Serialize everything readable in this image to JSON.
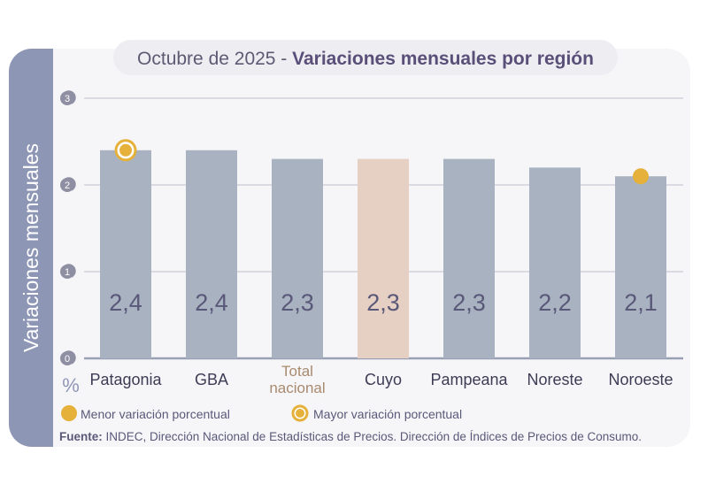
{
  "title_prefix": "Octubre de 2025 - ",
  "title_main": "Variaciones mensuales por región",
  "colors": {
    "bar": "#a8b2c1",
    "highlight_bar": "#e6cfc3",
    "band": "#8e96b6",
    "marker": "#e5b13a",
    "value_text": "#5a5878",
    "highlight_label": "#a88a6e"
  },
  "chart_data": {
    "type": "bar",
    "ylabel": "Variaciones mensuales",
    "yunit": "%",
    "ylim": [
      0,
      3
    ],
    "yticks": [
      "0",
      "1",
      "2",
      "3"
    ],
    "grid": true,
    "categories": [
      "Patagonia",
      "GBA",
      "Total nacional",
      "Cuyo",
      "Pampeana",
      "Noreste",
      "Noroeste"
    ],
    "category_lines": [
      [
        "Patagonia"
      ],
      [
        "GBA"
      ],
      [
        "Total",
        "nacional"
      ],
      [
        "Cuyo"
      ],
      [
        "Pampeana"
      ],
      [
        "Noreste"
      ],
      [
        "Noroeste"
      ]
    ],
    "values": [
      2.4,
      2.4,
      2.3,
      2.3,
      2.3,
      2.2,
      2.1
    ],
    "value_labels": [
      "2,4",
      "2,4",
      "2,3",
      "2,3",
      "2,3",
      "2,2",
      "2,1"
    ],
    "highlight_category": "Total nacional",
    "highlight_bar": "Cuyo",
    "max_marker": "Patagonia",
    "min_marker": "Noroeste",
    "legend": {
      "placement": "bottom-left",
      "min_label": "Menor variación porcentual",
      "max_label": "Mayor variación porcentual"
    }
  },
  "source": {
    "label": "Fuente:",
    "text": " INDEC, Dirección Nacional de Estadísticas de Precios. Dirección de Índices de Precios de Consumo."
  }
}
